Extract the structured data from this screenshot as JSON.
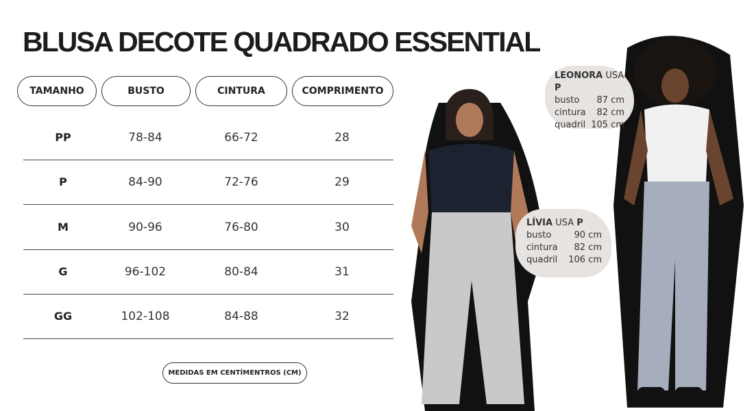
{
  "title": "BLUSA DECOTE QUADRADO ESSENTIAL",
  "headers": [
    "TAMANHO",
    "BUSTO",
    "CINTURA",
    "COMPRIMENTO"
  ],
  "rows": [
    [
      "PP",
      "78-84",
      "66-72",
      "28"
    ],
    [
      "P",
      "84-90",
      "72-76",
      "29"
    ],
    [
      "M",
      "90-96",
      "76-80",
      "30"
    ],
    [
      "G",
      "96-102",
      "80-84",
      "31"
    ],
    [
      "GG",
      "102-108",
      "84-88",
      "32"
    ]
  ],
  "note": "MEDIDAS EM CENTÍMENTROS (CM)",
  "models": [
    {
      "name": "LEONORA",
      "usa": "USA",
      "size": "P",
      "busto_label": "busto",
      "busto": "87 cm",
      "cintura_label": "cintura",
      "cintura": "82 cm",
      "quadril_label": "quadril",
      "quadril": "105 cm"
    },
    {
      "name": "LÍVIA",
      "usa": "USA",
      "size": "P",
      "busto_label": "busto",
      "busto": "90 cm",
      "cintura_label": "cintura",
      "cintura": "82 cm",
      "quadril_label": "quadril",
      "quadril": "106 cm"
    }
  ]
}
